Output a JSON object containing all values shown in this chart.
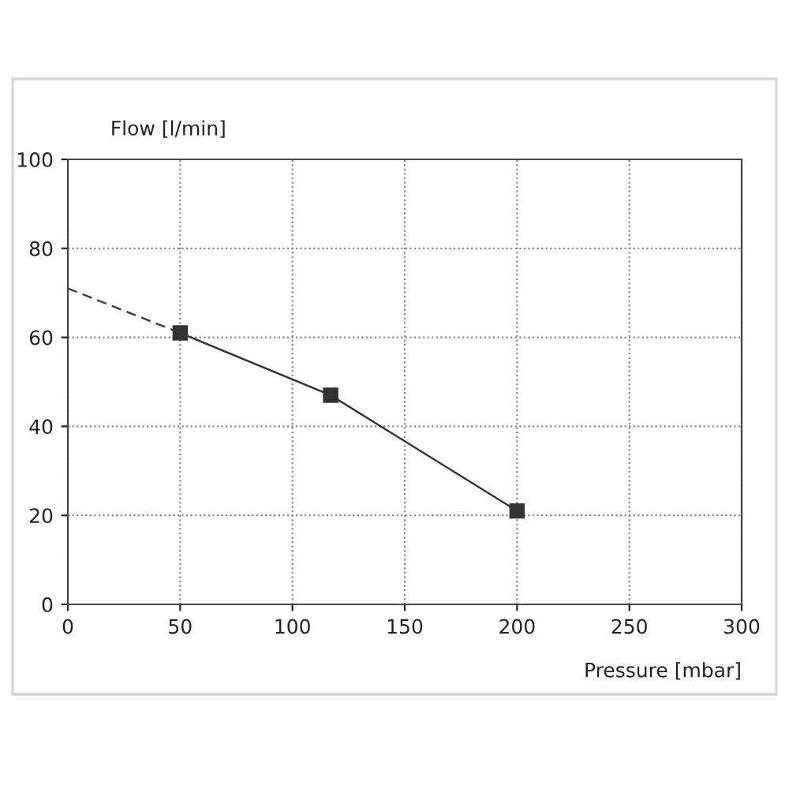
{
  "chart_data": {
    "type": "line",
    "xlabel": "Pressure [mbar]",
    "ylabel": "Flow [l/min]",
    "series": [
      {
        "x": [
          0,
          50
        ],
        "values": [
          71,
          61
        ],
        "color": "#444444",
        "line_style": "dashed",
        "marker": "none"
      },
      {
        "x": [
          50,
          117,
          200
        ],
        "values": [
          61,
          47,
          21
        ],
        "color": "#333333",
        "line_style": "solid",
        "marker": "square"
      }
    ],
    "xlim": [
      0,
      300
    ],
    "ylim": [
      0,
      100
    ],
    "xticks": [
      0,
      50,
      100,
      150,
      200,
      250,
      300
    ],
    "yticks": [
      0,
      20,
      40,
      60,
      80,
      100
    ],
    "grid": true
  }
}
